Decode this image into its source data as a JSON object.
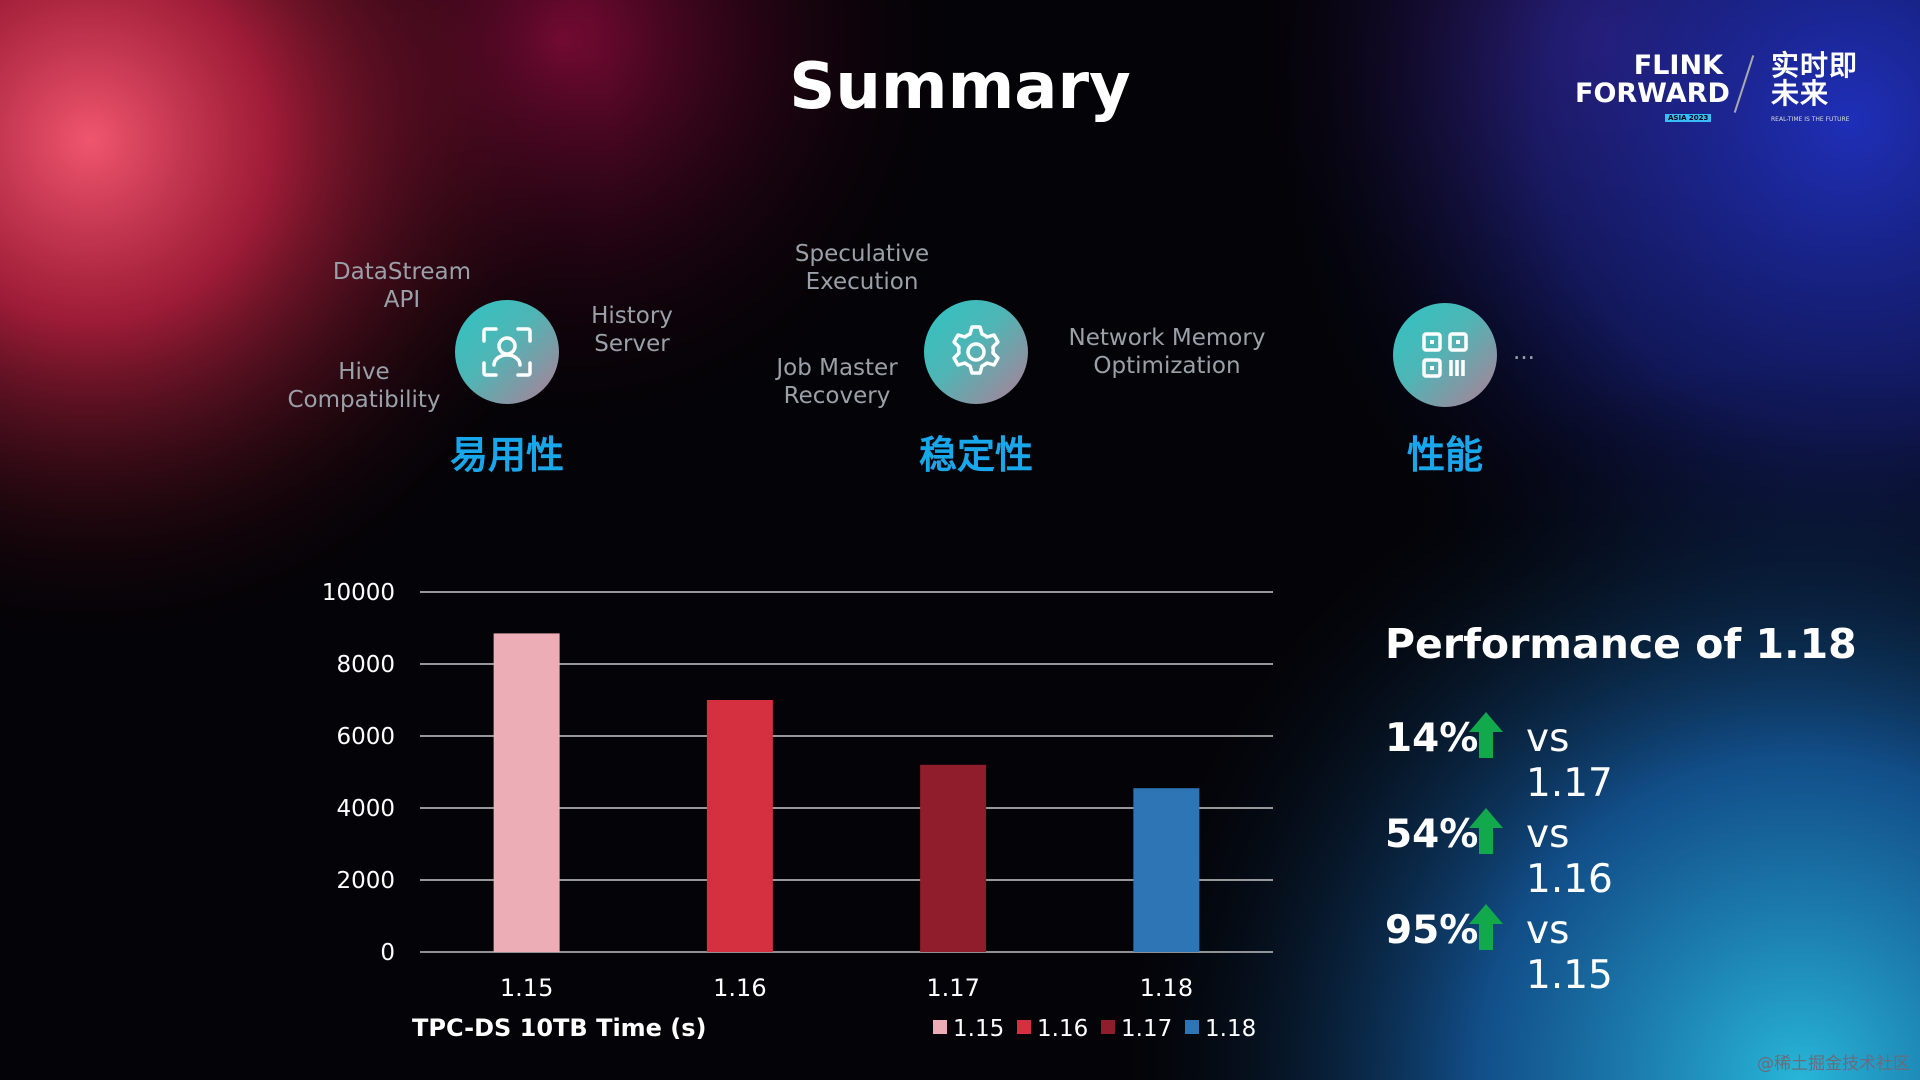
{
  "slide": {
    "title": "Summary"
  },
  "logo": {
    "line1": "FLINK",
    "line2": "FORWARD",
    "asia": "ASIA 2023",
    "cn": "实时即未来",
    "tagline": "REAL-TIME IS THE FUTURE"
  },
  "categories": [
    {
      "label": "易用性",
      "icon": "user-scan-icon",
      "features": [
        "DataStream API",
        "History Server",
        "Hive Compatibility"
      ]
    },
    {
      "label": "稳定性",
      "icon": "gear-icon",
      "features": [
        "Speculative Execution",
        "Job Master Recovery",
        "Network Memory Optimization"
      ]
    },
    {
      "label": "性能",
      "icon": "qr-code-icon",
      "features": [
        "..."
      ]
    }
  ],
  "feature_text": {
    "datastream": [
      "DataStream",
      "API"
    ],
    "history": [
      "History",
      "Server"
    ],
    "hive": [
      "Hive",
      "Compatibility"
    ],
    "speculative": [
      "Speculative",
      "Execution"
    ],
    "jobmaster": [
      "Job Master",
      "Recovery"
    ],
    "network": [
      "Network Memory",
      "Optimization"
    ],
    "ellipsis": "..."
  },
  "chart_data": {
    "type": "bar",
    "title": "",
    "xlabel": "TPC-DS 10TB Time (s)",
    "ylabel": "",
    "categories": [
      "1.15",
      "1.16",
      "1.17",
      "1.18"
    ],
    "values": [
      8850,
      7000,
      5200,
      4550
    ],
    "ylim": [
      0,
      10000
    ],
    "yticks": [
      "0",
      "2000",
      "4000",
      "6000",
      "8000",
      "10000"
    ],
    "colors": [
      "#edadb6",
      "#d5303f",
      "#901d2b",
      "#2e75b6"
    ],
    "legend": [
      "1.15",
      "1.16",
      "1.17",
      "1.18"
    ],
    "legend_position": "bottom-right",
    "grid": true
  },
  "performance": {
    "title": "Performance of 1.18",
    "rows": [
      {
        "pct": "14%",
        "vs": "vs 1.17"
      },
      {
        "pct": "54%",
        "vs": "vs 1.16"
      },
      {
        "pct": "95%",
        "vs": "vs 1.15"
      }
    ],
    "arrow_color": "#12a84c"
  },
  "watermark": "@稀土掘金技术社区"
}
